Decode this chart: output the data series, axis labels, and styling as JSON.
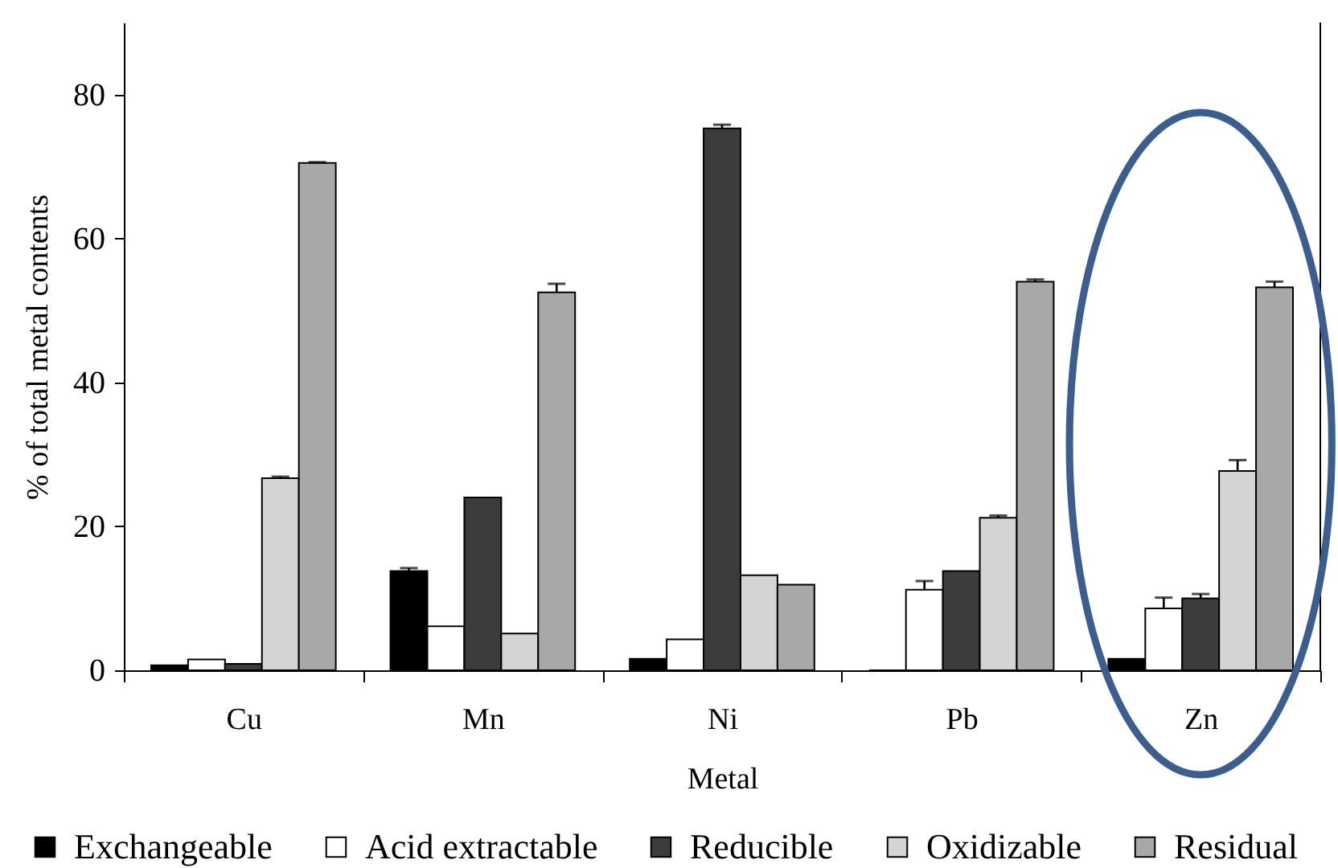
{
  "chart_data": {
    "type": "bar",
    "xlabel": "Metal",
    "ylabel": "% of total metal contents",
    "categories": [
      "Cu",
      "Mn",
      "Ni",
      "Pb",
      "Zn"
    ],
    "series": [
      {
        "name": "Exchangeable",
        "color": "#000000",
        "values": [
          0.7,
          13.8,
          1.6,
          0,
          1.6
        ],
        "errors": [
          null,
          [
            13.8,
            14.2
          ],
          null,
          null,
          null
        ]
      },
      {
        "name": "Acid extractable",
        "color": "#ffffff",
        "values": [
          1.5,
          6.1,
          4.3,
          11.2,
          8.6
        ],
        "errors": [
          null,
          null,
          null,
          [
            11.2,
            12.4
          ],
          [
            8.6,
            10.1
          ]
        ]
      },
      {
        "name": "Reducible",
        "color": "#3c3c3c",
        "values": [
          0.9,
          24.0,
          75.3,
          13.8,
          10.0
        ],
        "errors": [
          null,
          null,
          [
            75.3,
            75.8
          ],
          null,
          [
            10.0,
            10.6
          ]
        ]
      },
      {
        "name": "Oxidizable",
        "color": "#d4d4d4",
        "values": [
          26.7,
          5.1,
          13.2,
          21.2,
          27.7
        ],
        "errors": [
          [
            26.7,
            26.9
          ],
          null,
          null,
          [
            21.2,
            21.5
          ],
          [
            27.7,
            29.2
          ]
        ]
      },
      {
        "name": "Residual",
        "color": "#a8a8a8",
        "values": [
          70.5,
          52.5,
          11.9,
          54.0,
          53.2
        ],
        "errors": [
          [
            70.5,
            70.6
          ],
          [
            52.5,
            53.7
          ],
          null,
          [
            54.0,
            54.3
          ],
          [
            53.2,
            54.0
          ]
        ]
      }
    ],
    "ylim": [
      0,
      90
    ],
    "yticks": [
      0,
      20,
      40,
      60,
      80
    ],
    "legend": "bottom"
  }
}
